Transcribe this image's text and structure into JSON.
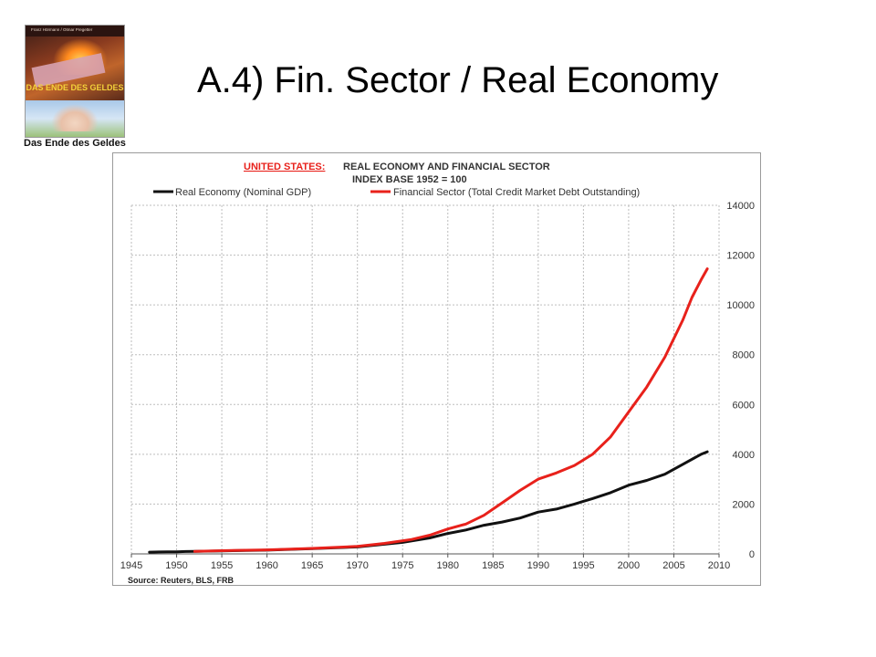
{
  "slide": {
    "title": "A.4) Fin. Sector / Real Economy"
  },
  "book": {
    "authors": "Franz Hörmann / Otmar Pregetter",
    "cover_title": "DAS ENDE DES GELDES",
    "caption": "Das Ende des Geldes"
  },
  "colors": {
    "real": "#111111",
    "financial": "#e8211b",
    "title_red": "#e8211b",
    "grid": "#bdbdbd"
  },
  "chart_data": {
    "type": "line",
    "title_country": "UNITED STATES:",
    "title_rest": "REAL ECONOMY AND FINANCIAL SECTOR",
    "subtitle": "INDEX BASE 1952 = 100",
    "source": "Source: Reuters, BLS, FRB",
    "xlim": [
      1945,
      2010
    ],
    "ylim": [
      0,
      14000
    ],
    "x_ticks": [
      1945,
      1950,
      1955,
      1960,
      1965,
      1970,
      1975,
      1980,
      1985,
      1990,
      1995,
      2000,
      2005,
      2010
    ],
    "y_ticks": [
      0,
      2000,
      4000,
      6000,
      8000,
      10000,
      12000,
      14000
    ],
    "grid": true,
    "y_axis_side": "right",
    "legend_position": "top",
    "series": [
      {
        "name": "Real Economy (Nominal GDP)",
        "color": "#111111",
        "x": [
          1947,
          1948,
          1949,
          1950,
          1951,
          1952,
          1955,
          1960,
          1965,
          1970,
          1975,
          1978,
          1980,
          1982,
          1984,
          1986,
          1988,
          1990,
          1992,
          1994,
          1996,
          1998,
          2000,
          2002,
          2004,
          2006,
          2008,
          2008.7
        ],
        "y": [
          70,
          78,
          80,
          85,
          95,
          100,
          120,
          150,
          210,
          280,
          460,
          640,
          820,
          960,
          1150,
          1280,
          1440,
          1680,
          1800,
          2000,
          2220,
          2460,
          2760,
          2950,
          3200,
          3600,
          4000,
          4100
        ]
      },
      {
        "name": "Financial Sector (Total Credit Market Debt Outstanding)",
        "color": "#e8211b",
        "x": [
          1952,
          1955,
          1960,
          1965,
          1970,
          1973,
          1976,
          1978,
          1980,
          1982,
          1984,
          1985,
          1986,
          1988,
          1990,
          1992,
          1994,
          1996,
          1998,
          2000,
          2002,
          2004,
          2006,
          2007,
          2008,
          2008.7
        ],
        "y": [
          100,
          130,
          160,
          220,
          300,
          420,
          580,
          750,
          1000,
          1200,
          1550,
          1800,
          2050,
          2550,
          3000,
          3250,
          3550,
          4000,
          4700,
          5700,
          6700,
          7900,
          9400,
          10300,
          11000,
          11450
        ]
      }
    ]
  }
}
